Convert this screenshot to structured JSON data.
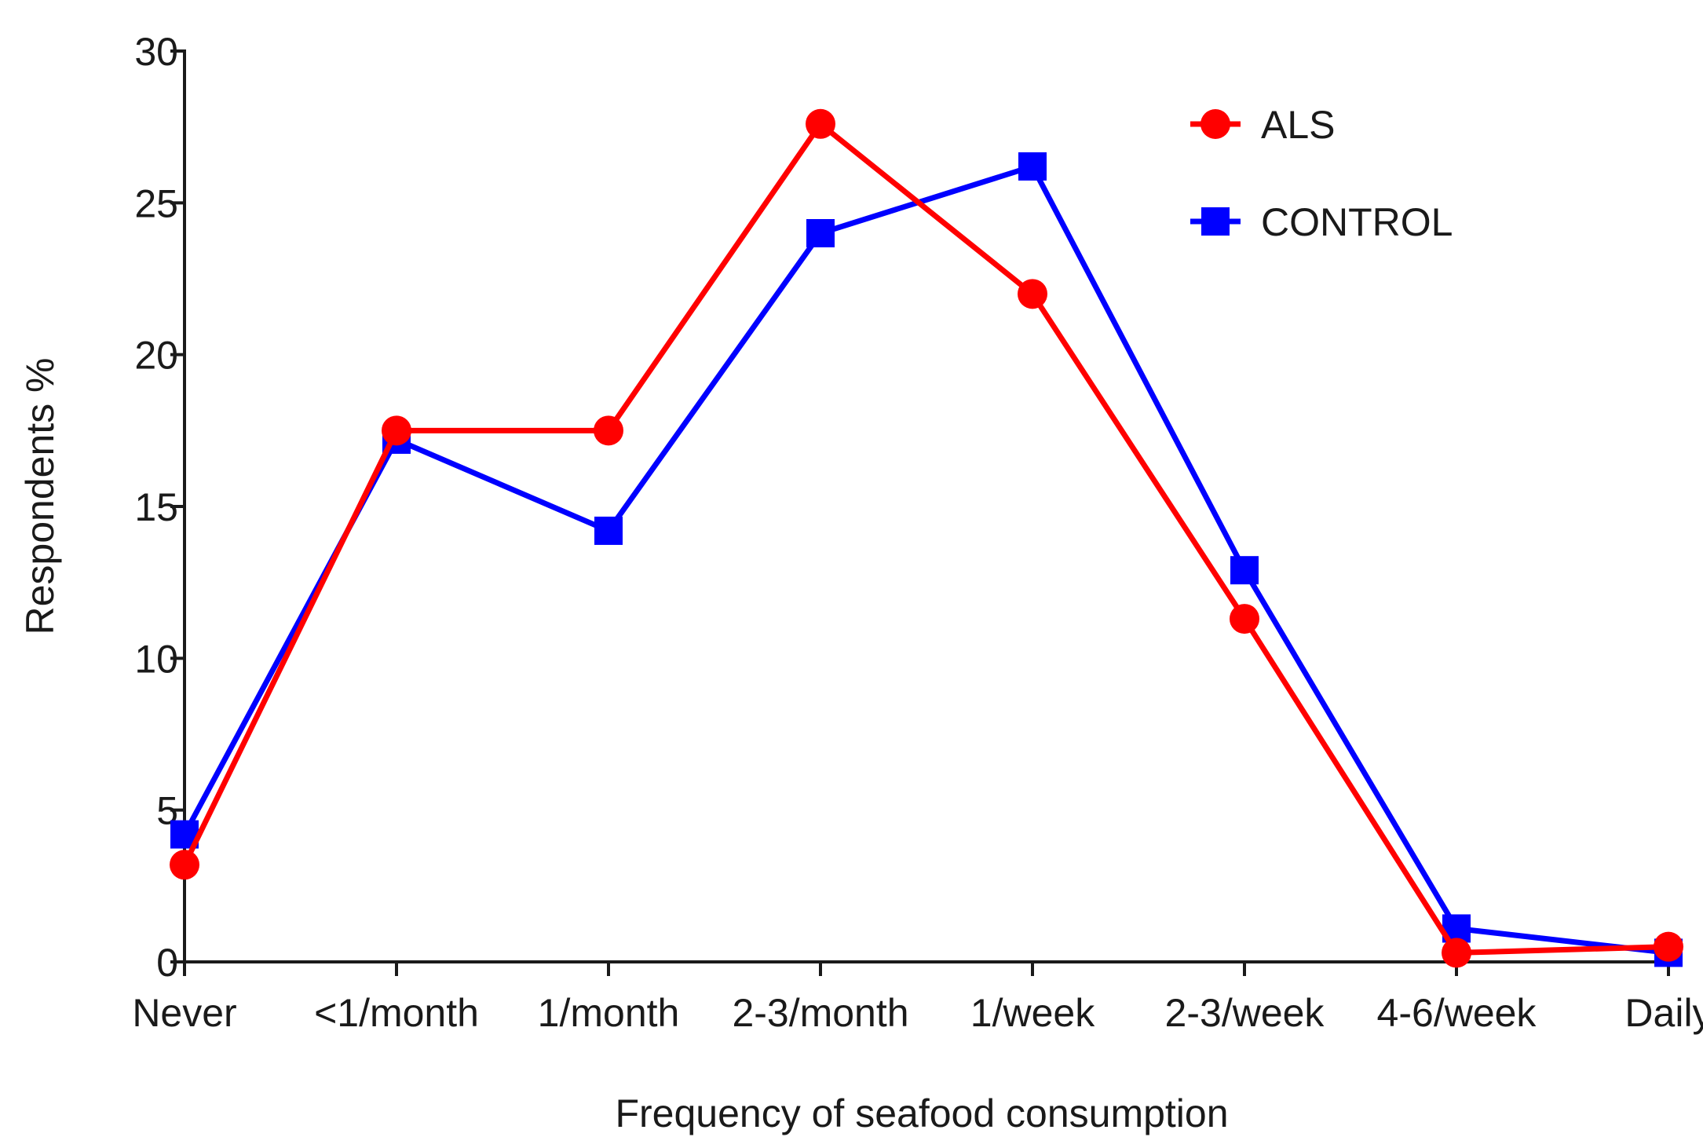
{
  "chart_data": {
    "type": "line",
    "title": "",
    "xlabel": "Frequency of seafood consumption",
    "ylabel": "Respondents %",
    "categories": [
      "Never",
      "<1/month",
      "1/month",
      "2-3/month",
      "1/week",
      "2-3/week",
      "4-6/week",
      "Daily"
    ],
    "ylim": [
      0,
      30
    ],
    "yticks": [
      0,
      5,
      10,
      15,
      20,
      25,
      30
    ],
    "ytick_labels": [
      "0",
      "5",
      "10",
      "15",
      "20",
      "25",
      "30"
    ],
    "grid": false,
    "legend_position": "top-right",
    "series": [
      {
        "name": "ALS",
        "color": "#ff0000",
        "marker": "circle",
        "values": [
          3.2,
          17.5,
          17.5,
          27.6,
          22.0,
          11.3,
          0.3,
          0.5
        ]
      },
      {
        "name": "CONTROL",
        "color": "#0000ff",
        "marker": "square",
        "values": [
          4.2,
          17.2,
          14.2,
          24.0,
          26.2,
          12.9,
          1.1,
          0.3
        ]
      }
    ]
  }
}
